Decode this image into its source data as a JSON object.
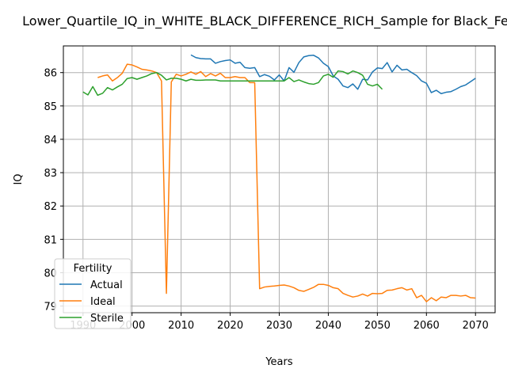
{
  "chart_data": {
    "type": "line",
    "title": "Lower_Quartile_IQ_in_WHITE_BLACK_DIFFERENCE_RICH_Sample for Black_Fe",
    "xlabel": "Years",
    "ylabel": "IQ",
    "xlim": [
      1986,
      2074
    ],
    "ylim": [
      78.8,
      86.8
    ],
    "xticks": [
      1990,
      2000,
      2010,
      2020,
      2030,
      2040,
      2050,
      2060,
      2070
    ],
    "yticks": [
      79,
      80,
      81,
      82,
      83,
      84,
      85,
      86
    ],
    "grid": true,
    "legend": {
      "title": "Fertility",
      "placement": "lower-left"
    },
    "series": [
      {
        "name": "Actual",
        "color": "#1f77b4",
        "x": [
          2012,
          2013,
          2014,
          2015,
          2016,
          2017,
          2018,
          2019,
          2020,
          2021,
          2022,
          2023,
          2024,
          2025,
          2026,
          2027,
          2028,
          2029,
          2030,
          2031,
          2032,
          2033,
          2034,
          2035,
          2036,
          2037,
          2038,
          2039,
          2040,
          2041,
          2042,
          2043,
          2044,
          2045,
          2046,
          2047,
          2048,
          2049,
          2050,
          2051,
          2052,
          2053,
          2054,
          2055,
          2056,
          2057,
          2058,
          2059,
          2060,
          2061,
          2062,
          2063,
          2064,
          2065,
          2066,
          2067,
          2068,
          2069,
          2070
        ],
        "y": [
          86.53,
          86.45,
          86.42,
          86.41,
          86.41,
          86.28,
          86.33,
          86.36,
          86.38,
          86.28,
          86.31,
          86.15,
          86.13,
          86.15,
          85.88,
          85.94,
          85.89,
          85.78,
          85.93,
          85.75,
          86.15,
          86.01,
          86.3,
          86.47,
          86.51,
          86.52,
          86.44,
          86.28,
          86.18,
          85.9,
          85.8,
          85.6,
          85.55,
          85.66,
          85.5,
          85.8,
          85.78,
          86.02,
          86.14,
          86.12,
          86.3,
          86.02,
          86.22,
          86.08,
          86.1,
          86.0,
          85.91,
          85.75,
          85.68,
          85.4,
          85.47,
          85.37,
          85.41,
          85.43,
          85.5,
          85.58,
          85.63,
          85.73,
          85.83
        ]
      },
      {
        "name": "Ideal",
        "color": "#ff7f0e",
        "x": [
          1993,
          1994,
          1995,
          1996,
          1997,
          1998,
          1999,
          2000,
          2001,
          2002,
          2003,
          2004,
          2005,
          2006,
          2007,
          2008,
          2009,
          2010,
          2011,
          2012,
          2013,
          2014,
          2015,
          2016,
          2017,
          2018,
          2019,
          2020,
          2021,
          2022,
          2023,
          2024,
          2025,
          2026,
          2027,
          2028,
          2029,
          2030,
          2031,
          2032,
          2033,
          2034,
          2035,
          2036,
          2037,
          2038,
          2039,
          2040,
          2041,
          2042,
          2043,
          2044,
          2045,
          2046,
          2047,
          2048,
          2049,
          2050,
          2051,
          2052,
          2053,
          2054,
          2055,
          2056,
          2057,
          2058,
          2059,
          2060,
          2061,
          2062,
          2063,
          2064,
          2065,
          2066,
          2067,
          2068,
          2069,
          2070
        ],
        "y": [
          85.85,
          85.9,
          85.93,
          85.75,
          85.85,
          85.98,
          86.25,
          86.23,
          86.17,
          86.1,
          86.08,
          86.05,
          86.0,
          85.75,
          79.38,
          85.72,
          85.95,
          85.9,
          85.95,
          86.02,
          85.95,
          86.03,
          85.88,
          85.97,
          85.9,
          85.98,
          85.85,
          85.85,
          85.88,
          85.85,
          85.85,
          85.7,
          85.7,
          79.52,
          79.57,
          79.59,
          79.6,
          79.62,
          79.63,
          79.6,
          79.55,
          79.47,
          79.44,
          79.5,
          79.56,
          79.65,
          79.65,
          79.62,
          79.55,
          79.52,
          79.38,
          79.32,
          79.27,
          79.3,
          79.36,
          79.3,
          79.38,
          79.37,
          79.38,
          79.47,
          79.48,
          79.52,
          79.55,
          79.48,
          79.52,
          79.25,
          79.32,
          79.13,
          79.25,
          79.16,
          79.27,
          79.25,
          79.32,
          79.32,
          79.3,
          79.32,
          79.25,
          79.24
        ]
      },
      {
        "name": "Sterile",
        "color": "#2ca02c",
        "x": [
          1990,
          1991,
          1992,
          1993,
          1994,
          1995,
          1996,
          1997,
          1998,
          1999,
          2000,
          2001,
          2002,
          2003,
          2004,
          2005,
          2006,
          2007,
          2008,
          2009,
          2010,
          2011,
          2012,
          2013,
          2014,
          2015,
          2016,
          2017,
          2018,
          2019,
          2020,
          2021,
          2022,
          2023,
          2024,
          2025,
          2026,
          2027,
          2028,
          2029,
          2030,
          2031,
          2032,
          2033,
          2034,
          2035,
          2036,
          2037,
          2038,
          2039,
          2040,
          2041,
          2042,
          2043,
          2044,
          2045,
          2046,
          2047,
          2048,
          2049,
          2050,
          2051
        ],
        "y": [
          85.42,
          85.33,
          85.58,
          85.32,
          85.38,
          85.55,
          85.48,
          85.57,
          85.65,
          85.82,
          85.85,
          85.8,
          85.85,
          85.9,
          85.97,
          86.0,
          85.92,
          85.78,
          85.83,
          85.83,
          85.8,
          85.75,
          85.8,
          85.77,
          85.77,
          85.78,
          85.78,
          85.78,
          85.75,
          85.75,
          85.75,
          85.75,
          85.75,
          85.75,
          85.75,
          85.75,
          85.75,
          85.75,
          85.75,
          85.75,
          85.75,
          85.75,
          85.85,
          85.73,
          85.78,
          85.72,
          85.67,
          85.65,
          85.7,
          85.9,
          85.95,
          85.86,
          86.05,
          86.03,
          85.96,
          86.05,
          86.0,
          85.92,
          85.65,
          85.6,
          85.65,
          85.5
        ]
      }
    ]
  }
}
